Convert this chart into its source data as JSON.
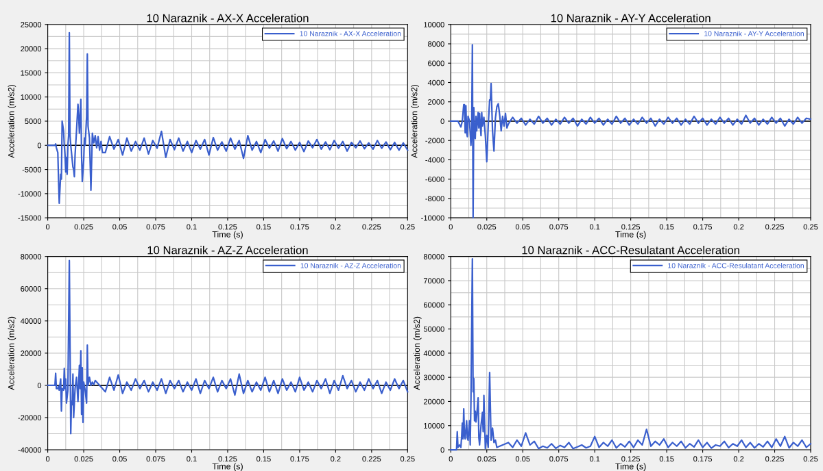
{
  "chart_data": [
    {
      "type": "line",
      "title": "10 Naraznik - AX-X Acceleration",
      "xlabel": "Time (s)",
      "ylabel": "Acceleration (m/s2)",
      "xlim": [
        0,
        0.25
      ],
      "xticks": [
        0,
        0.025,
        0.05,
        0.075,
        0.1,
        0.125,
        0.15,
        0.175,
        0.2,
        0.225,
        0.25
      ],
      "ylim": [
        -15000,
        25000
      ],
      "yticks": [
        -15000,
        -10000,
        -5000,
        0,
        5000,
        10000,
        15000,
        20000,
        25000
      ],
      "grid": true,
      "legend": "top right",
      "ref_lines": [
        {
          "axis": "y",
          "value": 0,
          "color": "#000000"
        }
      ],
      "series": [
        {
          "name": "10 Naraznik - AX-X Acceleration",
          "color": "#3a5fcd",
          "x": [
            0,
            0.005,
            0.0055,
            0.006,
            0.007,
            0.0075,
            0.008,
            0.009,
            0.0095,
            0.01,
            0.011,
            0.0115,
            0.012,
            0.0125,
            0.013,
            0.0135,
            0.014,
            0.0145,
            0.015,
            0.0155,
            0.016,
            0.017,
            0.0175,
            0.018,
            0.0185,
            0.019,
            0.02,
            0.021,
            0.0215,
            0.022,
            0.023,
            0.0235,
            0.024,
            0.025,
            0.0255,
            0.026,
            0.027,
            0.0275,
            0.028,
            0.029,
            0.03,
            0.031,
            0.032,
            0.033,
            0.034,
            0.035,
            0.036,
            0.037,
            0.038,
            0.04,
            0.043,
            0.046,
            0.049,
            0.052,
            0.055,
            0.058,
            0.061,
            0.064,
            0.067,
            0.07,
            0.073,
            0.076,
            0.079,
            0.082,
            0.085,
            0.088,
            0.091,
            0.094,
            0.097,
            0.1,
            0.103,
            0.106,
            0.109,
            0.112,
            0.115,
            0.118,
            0.121,
            0.124,
            0.127,
            0.13,
            0.133,
            0.136,
            0.139,
            0.142,
            0.145,
            0.148,
            0.151,
            0.154,
            0.157,
            0.16,
            0.163,
            0.166,
            0.169,
            0.172,
            0.175,
            0.178,
            0.181,
            0.184,
            0.187,
            0.19,
            0.193,
            0.196,
            0.199,
            0.202,
            0.205,
            0.208,
            0.211,
            0.214,
            0.217,
            0.22,
            0.223,
            0.226,
            0.229,
            0.232,
            0.235,
            0.238,
            0.241,
            0.244,
            0.247,
            0.25
          ],
          "values": [
            0,
            0,
            300,
            -500,
            -1500,
            -7000,
            -12000,
            -6000,
            -7000,
            5000,
            3000,
            0,
            -2000,
            -5500,
            -2500,
            -6000,
            0,
            2000,
            23300,
            2000,
            0,
            -3000,
            -4500,
            -5000,
            -6500,
            -2000,
            3000,
            8500,
            6000,
            2500,
            9500,
            -2000,
            -7500,
            -3000,
            1500,
            0,
            6000,
            18900,
            4000,
            1500,
            -9300,
            2500,
            500,
            2000,
            -500,
            1800,
            -1000,
            800,
            -1500,
            -1500,
            1800,
            -800,
            1200,
            -2000,
            1500,
            -1200,
            800,
            -1000,
            1500,
            -1800,
            1000,
            -600,
            2900,
            -2500,
            1200,
            -900,
            1500,
            -1200,
            800,
            -1500,
            1000,
            -800,
            1200,
            -2000,
            1600,
            -1000,
            700,
            -1200,
            1500,
            -800,
            1000,
            -2700,
            2000,
            -1000,
            800,
            -1500,
            1200,
            -600,
            900,
            -1200,
            1400,
            -700,
            800,
            -1000,
            600,
            -1300,
            900,
            -500,
            1200,
            -800,
            700,
            -900,
            1000,
            -600,
            800,
            -1200,
            600,
            -500,
            900,
            -700,
            500,
            -800,
            1000,
            -600,
            700,
            -900,
            600,
            -1000,
            500,
            -1000
          ]
        }
      ]
    },
    {
      "type": "line",
      "title": "10 Naraznik - AY-Y Acceleration",
      "xlabel": "Time (s)",
      "ylabel": "Acceleration (m/s2)",
      "xlim": [
        0,
        0.25
      ],
      "xticks": [
        0,
        0.025,
        0.05,
        0.075,
        0.1,
        0.125,
        0.15,
        0.175,
        0.2,
        0.225,
        0.25
      ],
      "ylim": [
        -10000,
        10000
      ],
      "yticks": [
        -10000,
        -8000,
        -6000,
        -4000,
        -2000,
        0,
        2000,
        4000,
        6000,
        8000,
        10000
      ],
      "grid": true,
      "legend": "top right",
      "ref_lines": [
        {
          "axis": "y",
          "value": 0,
          "color": "#000000"
        }
      ],
      "series": [
        {
          "name": "10 Naraznik - AY-Y Acceleration",
          "color": "#3a5fcd",
          "x": [
            0,
            0.005,
            0.006,
            0.007,
            0.008,
            0.009,
            0.0095,
            0.01,
            0.0105,
            0.011,
            0.0115,
            0.012,
            0.013,
            0.014,
            0.0145,
            0.015,
            0.0155,
            0.016,
            0.0165,
            0.017,
            0.0175,
            0.018,
            0.019,
            0.0195,
            0.02,
            0.021,
            0.0215,
            0.022,
            0.023,
            0.024,
            0.025,
            0.026,
            0.027,
            0.0275,
            0.028,
            0.029,
            0.03,
            0.031,
            0.032,
            0.033,
            0.034,
            0.035,
            0.036,
            0.037,
            0.038,
            0.039,
            0.04,
            0.043,
            0.046,
            0.049,
            0.052,
            0.055,
            0.058,
            0.061,
            0.064,
            0.067,
            0.07,
            0.073,
            0.076,
            0.079,
            0.082,
            0.085,
            0.088,
            0.091,
            0.094,
            0.097,
            0.1,
            0.103,
            0.106,
            0.109,
            0.112,
            0.115,
            0.118,
            0.121,
            0.124,
            0.127,
            0.13,
            0.133,
            0.136,
            0.139,
            0.142,
            0.145,
            0.148,
            0.151,
            0.154,
            0.157,
            0.16,
            0.163,
            0.166,
            0.169,
            0.172,
            0.175,
            0.178,
            0.181,
            0.184,
            0.187,
            0.19,
            0.193,
            0.196,
            0.199,
            0.202,
            0.205,
            0.208,
            0.211,
            0.214,
            0.217,
            0.22,
            0.223,
            0.226,
            0.229,
            0.232,
            0.235,
            0.238,
            0.241,
            0.244,
            0.247,
            0.25
          ],
          "values": [
            0,
            0,
            -300,
            -600,
            0,
            1700,
            1700,
            -1200,
            1600,
            -1200,
            -1600,
            500,
            0,
            -2500,
            -1000,
            7900,
            -10000,
            1400,
            -1500,
            -1800,
            500,
            -1000,
            900,
            -700,
            800,
            -1500,
            900,
            -500,
            400,
            -1500,
            -4200,
            -500,
            2200,
            2200,
            3900,
            -1000,
            -3100,
            300,
            1500,
            1800,
            600,
            -1000,
            500,
            -500,
            800,
            -700,
            -300,
            400,
            -200,
            300,
            -400,
            200,
            -300,
            500,
            -200,
            300,
            -400,
            200,
            -300,
            400,
            -200,
            300,
            -500,
            200,
            -300,
            400,
            -200,
            300,
            -400,
            200,
            -300,
            500,
            -200,
            300,
            -400,
            200,
            -300,
            400,
            -200,
            300,
            -500,
            200,
            -300,
            400,
            -200,
            300,
            -400,
            200,
            -300,
            500,
            -200,
            300,
            -400,
            200,
            -300,
            400,
            -200,
            300,
            -400,
            200,
            -300,
            600,
            -200,
            300,
            -400,
            200,
            -300,
            400,
            -200,
            300,
            -500,
            200,
            -300,
            400,
            -200,
            300,
            200
          ]
        }
      ]
    },
    {
      "type": "line",
      "title": "10 Naraznik - AZ-Z Acceleration",
      "xlabel": "Time (s)",
      "ylabel": "Acceleration (m/s2)",
      "xlim": [
        0,
        0.25
      ],
      "xticks": [
        0,
        0.025,
        0.05,
        0.075,
        0.1,
        0.125,
        0.15,
        0.175,
        0.2,
        0.225,
        0.25
      ],
      "ylim": [
        -40000,
        80000
      ],
      "yticks": [
        -40000,
        -20000,
        0,
        20000,
        40000,
        60000,
        80000
      ],
      "grid": true,
      "legend": "top right",
      "ref_lines": [
        {
          "axis": "y",
          "value": 0,
          "color": "#000000"
        }
      ],
      "series": [
        {
          "name": "10 Naraznik - AZ-Z Acceleration",
          "color": "#3a5fcd",
          "x": [
            0,
            0.005,
            0.0055,
            0.006,
            0.007,
            0.0075,
            0.008,
            0.009,
            0.0095,
            0.01,
            0.011,
            0.0115,
            0.012,
            0.0125,
            0.013,
            0.014,
            0.015,
            0.016,
            0.0165,
            0.017,
            0.0175,
            0.018,
            0.019,
            0.02,
            0.021,
            0.022,
            0.0225,
            0.023,
            0.0235,
            0.024,
            0.0245,
            0.025,
            0.026,
            0.027,
            0.0275,
            0.028,
            0.029,
            0.03,
            0.031,
            0.032,
            0.033,
            0.04,
            0.043,
            0.046,
            0.049,
            0.052,
            0.055,
            0.058,
            0.061,
            0.064,
            0.067,
            0.07,
            0.073,
            0.076,
            0.079,
            0.082,
            0.085,
            0.088,
            0.091,
            0.094,
            0.097,
            0.1,
            0.103,
            0.106,
            0.109,
            0.112,
            0.115,
            0.118,
            0.121,
            0.124,
            0.127,
            0.13,
            0.133,
            0.136,
            0.139,
            0.142,
            0.145,
            0.148,
            0.151,
            0.154,
            0.157,
            0.16,
            0.163,
            0.166,
            0.169,
            0.172,
            0.175,
            0.178,
            0.181,
            0.184,
            0.187,
            0.19,
            0.193,
            0.196,
            0.199,
            0.202,
            0.205,
            0.208,
            0.211,
            0.214,
            0.217,
            0.22,
            0.223,
            0.226,
            0.229,
            0.232,
            0.235,
            0.238,
            0.241,
            0.244,
            0.247,
            0.25
          ],
          "values": [
            0,
            0,
            7500,
            -2000,
            -2000,
            -500,
            -3000,
            4000,
            -16000,
            -2000,
            -3000,
            10500,
            -2000,
            4000,
            -11000,
            -3000,
            77500,
            -30000,
            -10000,
            -12000,
            7000,
            -20000,
            -2000,
            5000,
            -10000,
            12500,
            -2000,
            21500,
            -18000,
            11000,
            -23000,
            2000,
            -3000,
            -11000,
            25000,
            0,
            5000,
            0,
            2000,
            500,
            3000,
            -4000,
            5000,
            -3000,
            6500,
            -5000,
            2000,
            -3000,
            4000,
            -2000,
            3000,
            -4000,
            2000,
            -3000,
            4000,
            -5000,
            3000,
            -2000,
            3000,
            -4000,
            2000,
            -3000,
            4000,
            -5000,
            3000,
            -2000,
            5000,
            -4000,
            3000,
            -2000,
            4000,
            -6000,
            7000,
            -5000,
            3000,
            -4000,
            2000,
            -3000,
            5000,
            -4000,
            3000,
            -5000,
            4000,
            -3000,
            2000,
            -4000,
            5000,
            -3000,
            2000,
            -4000,
            3000,
            -2000,
            4000,
            -5000,
            3000,
            -3000,
            6000,
            -2000,
            3000,
            -4000,
            2000,
            -3000,
            4000,
            -2000,
            3000,
            -5000,
            2000,
            -3000,
            4000,
            -2000,
            3000,
            -4000
          ]
        }
      ]
    },
    {
      "type": "line",
      "title": "10 Naraznik - ACC-Resulatant Acceleration",
      "xlabel": "Time (s)",
      "ylabel": "Acceleration (m/s2)",
      "xlim": [
        0,
        0.25
      ],
      "xticks": [
        0,
        0.025,
        0.05,
        0.075,
        0.1,
        0.125,
        0.15,
        0.175,
        0.2,
        0.225,
        0.25
      ],
      "ylim": [
        0,
        80000
      ],
      "yticks": [
        0,
        10000,
        20000,
        30000,
        40000,
        50000,
        60000,
        70000,
        80000
      ],
      "grid": true,
      "legend": "top right",
      "series": [
        {
          "name": "10 Naraznik - ACC-Resulatant Acceleration",
          "color": "#3a5fcd",
          "x": [
            0,
            0.004,
            0.0045,
            0.005,
            0.006,
            0.007,
            0.0075,
            0.008,
            0.0085,
            0.009,
            0.0095,
            0.01,
            0.011,
            0.0115,
            0.012,
            0.013,
            0.0135,
            0.014,
            0.015,
            0.0155,
            0.016,
            0.0165,
            0.017,
            0.0175,
            0.018,
            0.019,
            0.0195,
            0.02,
            0.021,
            0.022,
            0.0225,
            0.023,
            0.024,
            0.025,
            0.026,
            0.027,
            0.028,
            0.029,
            0.03,
            0.031,
            0.032,
            0.04,
            0.043,
            0.046,
            0.049,
            0.052,
            0.055,
            0.058,
            0.061,
            0.064,
            0.067,
            0.07,
            0.073,
            0.076,
            0.079,
            0.082,
            0.085,
            0.088,
            0.091,
            0.094,
            0.097,
            0.1,
            0.103,
            0.106,
            0.109,
            0.112,
            0.115,
            0.118,
            0.121,
            0.124,
            0.127,
            0.13,
            0.133,
            0.136,
            0.139,
            0.142,
            0.145,
            0.148,
            0.151,
            0.154,
            0.157,
            0.16,
            0.163,
            0.166,
            0.169,
            0.172,
            0.175,
            0.178,
            0.181,
            0.184,
            0.187,
            0.19,
            0.193,
            0.196,
            0.199,
            0.202,
            0.205,
            0.208,
            0.211,
            0.214,
            0.217,
            0.22,
            0.223,
            0.226,
            0.229,
            0.232,
            0.235,
            0.238,
            0.241,
            0.244,
            0.247,
            0.25
          ],
          "values": [
            0,
            0,
            7500,
            1000,
            2000,
            1000,
            5000,
            11000,
            4500,
            17000,
            6000,
            4500,
            12000,
            5000,
            4000,
            12000,
            2000,
            20000,
            79000,
            24000,
            29500,
            12000,
            16000,
            11500,
            14000,
            21500,
            5000,
            2000,
            10000,
            15500,
            7500,
            22500,
            500,
            6000,
            1000,
            32000,
            4000,
            9000,
            3000,
            4000,
            1000,
            3000,
            1000,
            4000,
            1500,
            7000,
            2000,
            3500,
            500,
            1500,
            800,
            2500,
            600,
            1800,
            1000,
            3000,
            500,
            1200,
            2000,
            800,
            1500,
            5500,
            1000,
            3000,
            1500,
            4000,
            800,
            2500,
            1200,
            3500,
            1000,
            4000,
            2000,
            8500,
            1500,
            3500,
            2000,
            4500,
            1000,
            3000,
            1500,
            3500,
            800,
            2500,
            1200,
            4000,
            1000,
            3000,
            700,
            2000,
            1500,
            3500,
            900,
            2500,
            1500,
            4000,
            1000,
            3000,
            800,
            2500,
            1200,
            3500,
            1000,
            4500,
            1500,
            5500,
            800,
            3000,
            1500,
            4000,
            1000,
            2500
          ]
        }
      ]
    }
  ]
}
